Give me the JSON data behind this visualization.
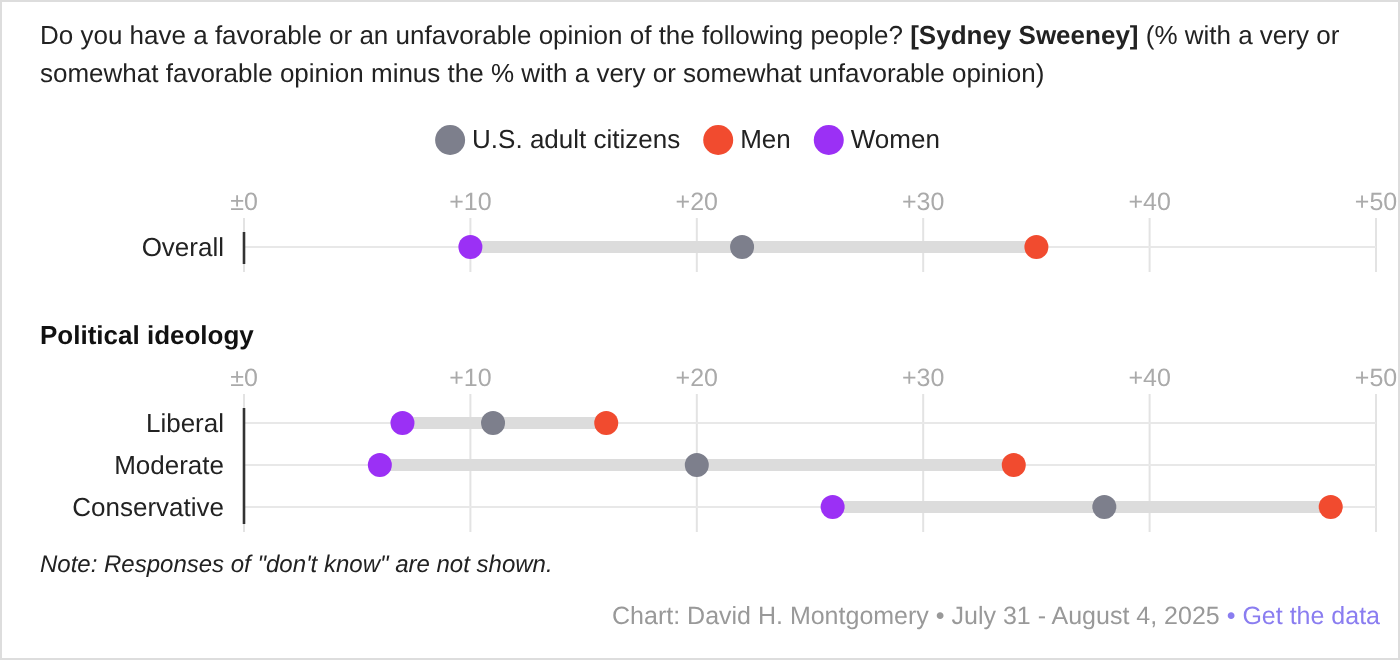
{
  "chart_data": [
    {
      "type": "scatter",
      "title": "Do you have a favorable or an unfavorable opinion of the following people? [Sydney Sweeney] (% with a very or somewhat favorable opinion minus the % with a very or somewhat unfavorable opinion)",
      "orientation": "horizontal",
      "categories": [
        "Overall"
      ],
      "series": [
        {
          "name": "U.S. adult citizens",
          "color": "#7d7f8c",
          "values": [
            22
          ]
        },
        {
          "name": "Men",
          "color": "#f14b2f",
          "values": [
            35
          ]
        },
        {
          "name": "Women",
          "color": "#9b30f5",
          "values": [
            10
          ]
        }
      ],
      "xlim": [
        0,
        50
      ],
      "xticks": [
        {
          "value": 0,
          "label": "±0"
        },
        {
          "value": 10,
          "label": "+10"
        },
        {
          "value": 20,
          "label": "+20"
        },
        {
          "value": 30,
          "label": "+30"
        },
        {
          "value": 40,
          "label": "+40"
        },
        {
          "value": 50,
          "label": "+50"
        }
      ],
      "grid": true,
      "legend": "top",
      "marker": "circle"
    },
    {
      "type": "scatter",
      "title": "Political ideology",
      "orientation": "horizontal",
      "categories": [
        "Liberal",
        "Moderate",
        "Conservative"
      ],
      "series": [
        {
          "color": "#7d7f8c",
          "values": [
            11,
            20,
            38
          ]
        },
        {
          "color": "#f14b2f",
          "values": [
            16,
            34,
            48
          ]
        },
        {
          "color": "#9b30f5",
          "values": [
            7,
            6,
            26
          ]
        }
      ],
      "xlim": [
        0,
        50
      ],
      "xticks": [
        {
          "value": 0,
          "label": "±0"
        },
        {
          "value": 10,
          "label": "+10"
        },
        {
          "value": 20,
          "label": "+20"
        },
        {
          "value": 30,
          "label": "+30"
        },
        {
          "value": 40,
          "label": "+40"
        },
        {
          "value": 50,
          "label": "+50"
        }
      ],
      "grid": true,
      "marker": "circle",
      "annotations": [
        "Note: Responses of \"don't know\" are not shown.",
        "Chart: David H. Montgomery • July 31 - August 4, 2025 • Get the data"
      ]
    }
  ]
}
